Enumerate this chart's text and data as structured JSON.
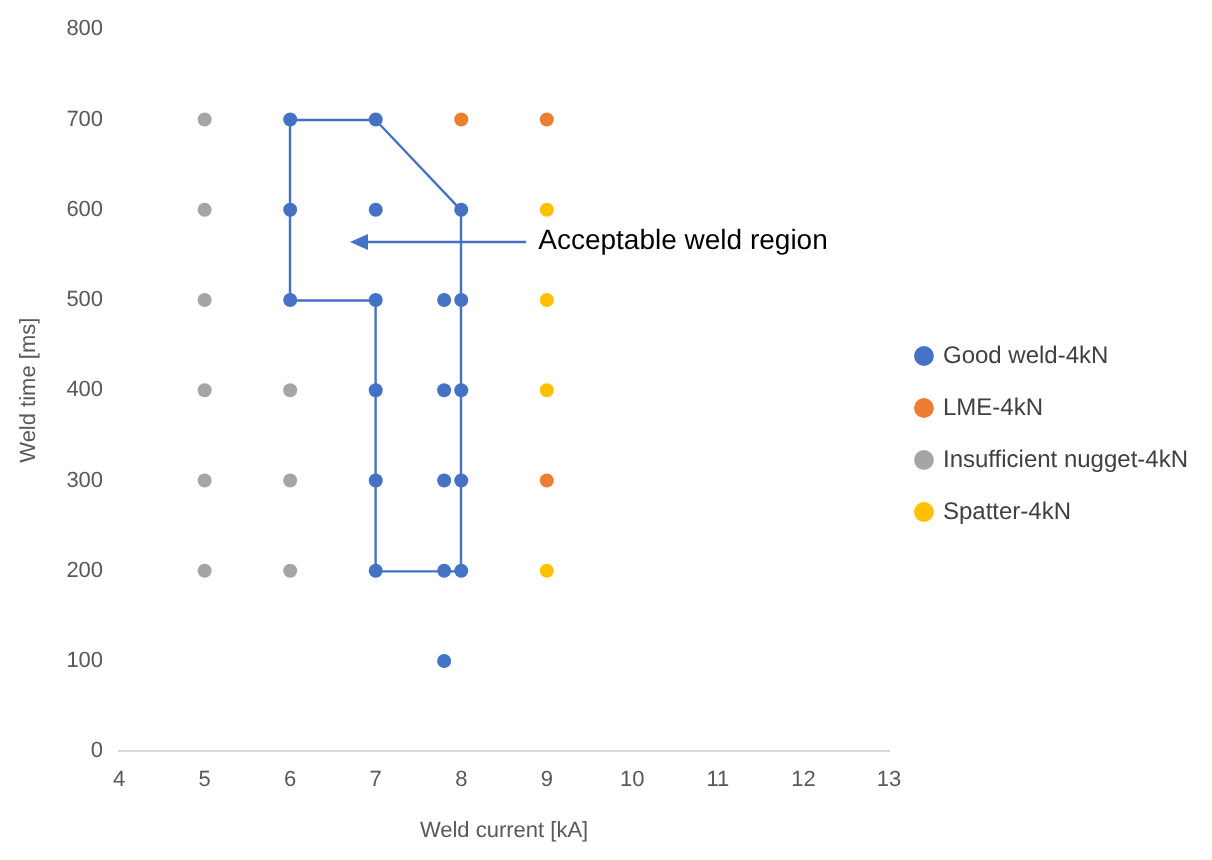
{
  "chart_data": {
    "type": "scatter",
    "xlabel": "Weld current [kA]",
    "ylabel": "Weld time [ms]",
    "xlim": [
      4,
      13
    ],
    "xticks": [
      4,
      5,
      6,
      7,
      8,
      9,
      10,
      11,
      12,
      13
    ],
    "ylim": [
      0,
      800
    ],
    "yticks": [
      0,
      100,
      200,
      300,
      400,
      500,
      600,
      700,
      800
    ],
    "grid": false,
    "legend": "right",
    "marker": "circle",
    "series": [
      {
        "name": "Good weld-4kN",
        "color": "#4472c4",
        "x": [
          6,
          7,
          6,
          7,
          8,
          6,
          7,
          7.8,
          8,
          7,
          7.8,
          8,
          7,
          7.8,
          8,
          7,
          7.8,
          8,
          7.8
        ],
        "values": [
          700,
          700,
          600,
          600,
          600,
          500,
          500,
          500,
          500,
          400,
          400,
          400,
          300,
          300,
          300,
          200,
          200,
          200,
          100
        ]
      },
      {
        "name": "LME-4kN",
        "color": "#ed7d31",
        "x": [
          8,
          9,
          9
        ],
        "values": [
          700,
          700,
          300
        ]
      },
      {
        "name": "Insufficient nugget-4kN",
        "color": "#a5a5a5",
        "x": [
          5,
          5,
          5,
          5,
          5,
          5,
          6,
          6,
          6
        ],
        "values": [
          700,
          600,
          500,
          400,
          300,
          200,
          400,
          300,
          200
        ]
      },
      {
        "name": "Spatter-4kN",
        "color": "#ffc000",
        "x": [
          9,
          9,
          9,
          9
        ],
        "values": [
          600,
          500,
          400,
          200
        ]
      }
    ],
    "annotations": [
      "Acceptable weld region"
    ]
  }
}
